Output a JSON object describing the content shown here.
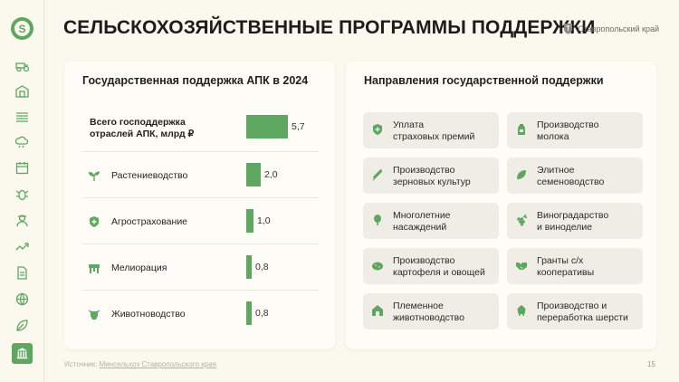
{
  "header": {
    "title": "СЕЛЬСКОХОЗЯЙСТВЕННЫЕ ПРОГРАММЫ ПОДДЕРЖКИ",
    "region": "Ставропольский край",
    "logo_letter": "S"
  },
  "sidebar": {
    "icons": [
      "tractor-icon",
      "barn-icon",
      "field-icon",
      "weather-icon",
      "calendar-icon",
      "bug-icon",
      "farmer-icon",
      "chart-icon",
      "document-icon",
      "globe-icon",
      "leaf-icon",
      "government-building-icon"
    ],
    "active": "government-building-icon"
  },
  "support_panel": {
    "title": "Государственная поддержка АПК в 2024",
    "rows": [
      {
        "label": "Всего господдержка отраслей АПК, млрд ₽",
        "value": "5,7",
        "num": 5.7,
        "icon": "none",
        "bold": true
      },
      {
        "label": "Растениеводство",
        "value": "2,0",
        "num": 2.0,
        "icon": "sprout-icon"
      },
      {
        "label": "Агрострахование",
        "value": "1,0",
        "num": 1.0,
        "icon": "shield-plus-icon"
      },
      {
        "label": "Мелиорация",
        "value": "0,8",
        "num": 0.8,
        "icon": "irrigation-icon"
      },
      {
        "label": "Животноводство",
        "value": "0,8",
        "num": 0.8,
        "icon": "cow-icon"
      }
    ]
  },
  "directions_panel": {
    "title": "Направления государственной поддержки",
    "items": [
      {
        "text": [
          "Уплата",
          "страховых премий"
        ],
        "icon": "shield-plus-icon"
      },
      {
        "text": [
          "Производство",
          "молока"
        ],
        "icon": "milk-icon"
      },
      {
        "text": [
          "Производство",
          "зерновых культур"
        ],
        "icon": "wheat-icon"
      },
      {
        "text": [
          "Элитное",
          "семеноводство"
        ],
        "icon": "seed-icon"
      },
      {
        "text": [
          "Многолетние",
          "насаждений"
        ],
        "icon": "tree-icon"
      },
      {
        "text": [
          "Виноградарство",
          "и виноделие"
        ],
        "icon": "grapes-icon"
      },
      {
        "text": [
          "Производство",
          "картофеля и овощей"
        ],
        "icon": "potato-icon"
      },
      {
        "text": [
          "Гранты с/х",
          "кооперативы"
        ],
        "icon": "handshake-icon"
      },
      {
        "text": [
          "Племенное",
          "животноводство"
        ],
        "icon": "barn-icon"
      },
      {
        "text": [
          "Производство и",
          "переработка шерсти"
        ],
        "icon": "sheep-icon"
      }
    ]
  },
  "footer": {
    "source_prefix": "Источник:",
    "source_link": "Минсельхоз Ставропольского края",
    "page_number": "15"
  },
  "colors": {
    "accent": "#5ea760",
    "background": "#fbf8ee",
    "tile": "#efede5"
  }
}
